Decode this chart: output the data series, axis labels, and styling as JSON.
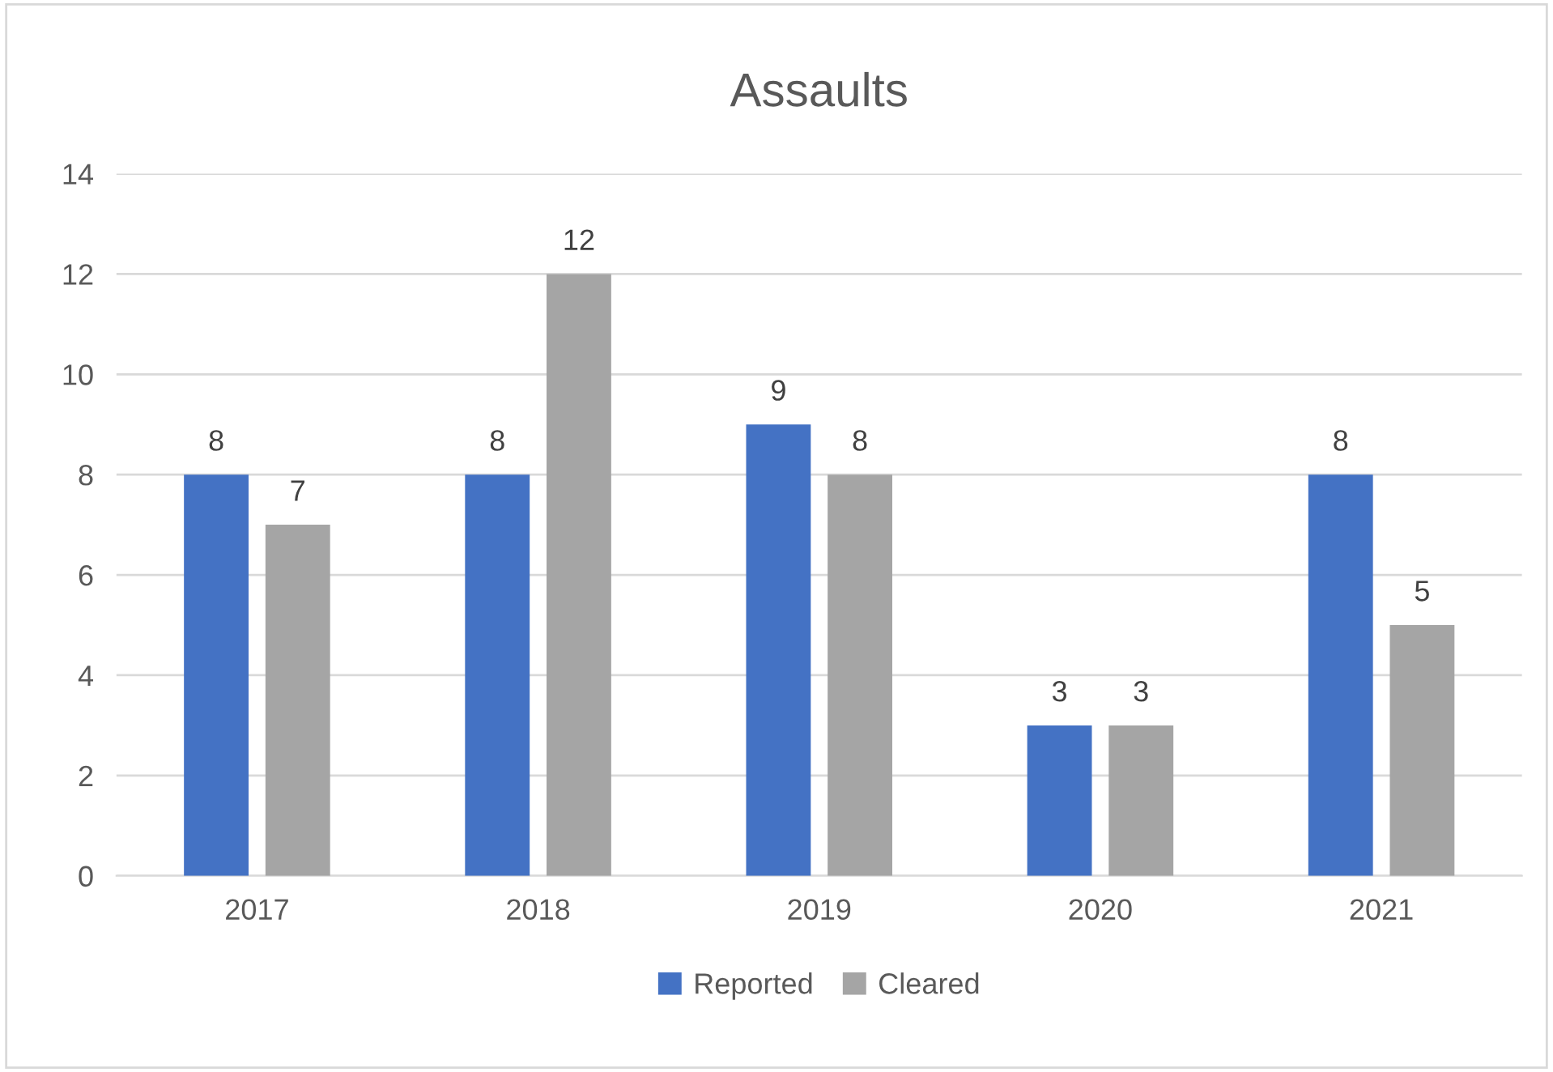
{
  "chart_data": {
    "type": "bar",
    "title": "Assaults",
    "categories": [
      "2017",
      "2018",
      "2019",
      "2020",
      "2021"
    ],
    "series": [
      {
        "name": "Reported",
        "color": "#4472c4",
        "values": [
          8,
          8,
          9,
          3,
          8
        ]
      },
      {
        "name": "Cleared",
        "color": "#a5a5a5",
        "values": [
          7,
          12,
          8,
          3,
          5
        ]
      }
    ],
    "ylim": [
      0,
      14
    ],
    "yticks": [
      0,
      2,
      4,
      6,
      8,
      10,
      12,
      14
    ],
    "grid": "y",
    "legend": "bottom",
    "data_labels": true
  }
}
